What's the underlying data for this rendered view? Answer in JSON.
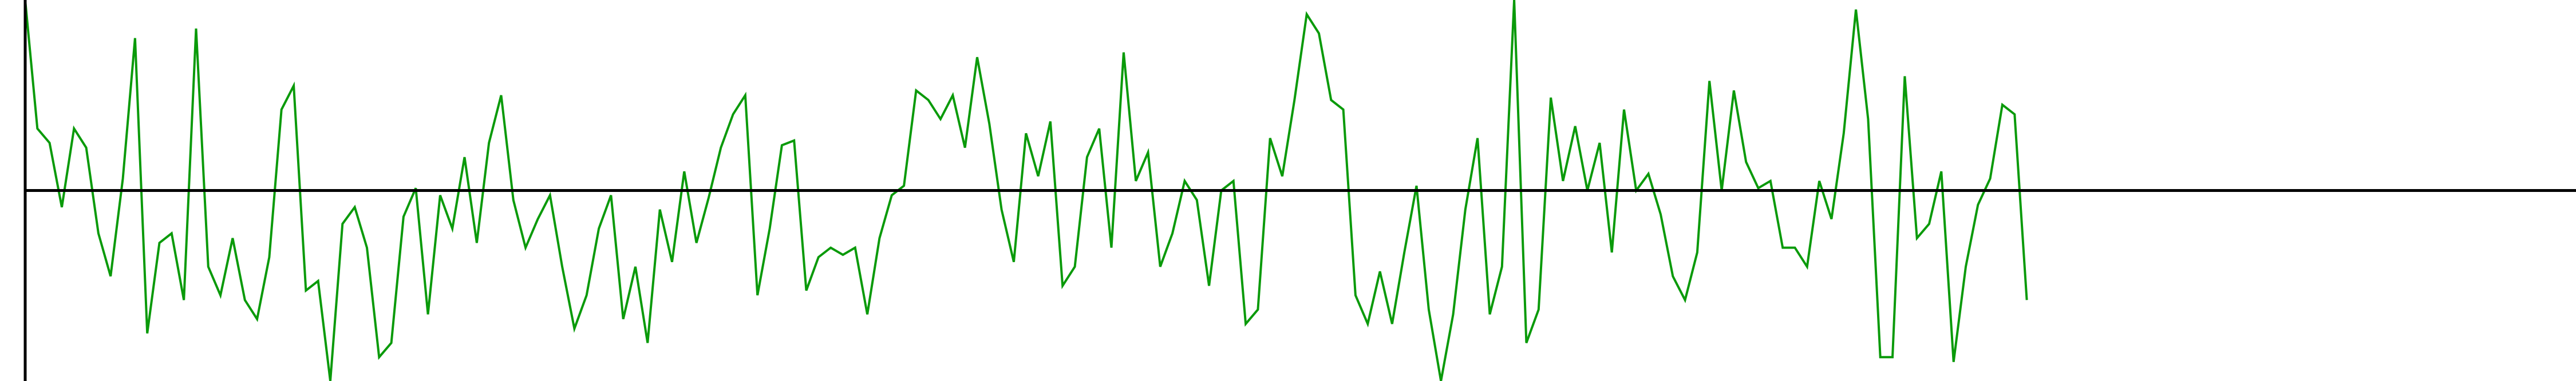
{
  "chart_data": {
    "type": "line",
    "title": "",
    "xlabel": "",
    "ylabel": "",
    "grid": false,
    "legend": "none",
    "xlim": [
      0,
      209
    ],
    "ylim": [
      -4,
      4
    ],
    "baseline": 0,
    "series": [
      {
        "color": "#0a9a0a",
        "values": [
          4.0,
          1.3,
          1.0,
          -0.35,
          1.3,
          0.9,
          -0.9,
          -1.8,
          0.25,
          3.2,
          -3.0,
          -1.1,
          -0.9,
          -2.3,
          3.4,
          -1.6,
          -2.2,
          -1.0,
          -2.3,
          -2.7,
          -1.4,
          1.7,
          2.2,
          -2.1,
          -1.9,
          -4.0,
          -0.7,
          -0.35,
          -1.2,
          -3.5,
          -3.2,
          -0.55,
          0.05,
          -2.6,
          -0.1,
          -0.8,
          0.7,
          -1.1,
          1.0,
          2.0,
          -0.2,
          -1.2,
          -0.6,
          -0.1,
          -1.6,
          -2.9,
          -2.2,
          -0.8,
          -0.1,
          -2.7,
          -1.6,
          -3.2,
          -0.4,
          -1.5,
          0.4,
          -1.1,
          -0.15,
          0.9,
          1.6,
          2.0,
          -2.2,
          -0.8,
          0.95,
          1.05,
          -2.1,
          -1.4,
          -1.2,
          -1.35,
          -1.2,
          -2.6,
          -1.0,
          -0.1,
          0.1,
          2.1,
          1.9,
          1.5,
          2.0,
          0.9,
          2.8,
          1.4,
          -0.4,
          -1.5,
          1.2,
          0.3,
          1.45,
          -2.0,
          -1.6,
          0.7,
          1.3,
          -1.2,
          2.9,
          0.2,
          0.8,
          -1.6,
          -0.9,
          0.2,
          -0.2,
          -2.0,
          0.0,
          0.2,
          -2.8,
          -2.5,
          1.1,
          0.3,
          1.9,
          3.7,
          3.3,
          1.9,
          1.7,
          -2.2,
          -2.8,
          -1.7,
          -2.8,
          -1.3,
          0.1,
          -2.5,
          -4.0,
          -2.6,
          -0.4,
          1.1,
          -2.6,
          -1.6,
          4.0,
          -3.2,
          -2.5,
          1.95,
          0.2,
          1.35,
          0.0,
          1.0,
          -1.3,
          1.7,
          0.0,
          0.35,
          -0.5,
          -1.8,
          -2.3,
          -1.3,
          2.3,
          0.0,
          2.1,
          0.6,
          0.05,
          0.2,
          -1.2,
          -1.2,
          -1.6,
          0.2,
          -0.6,
          1.2,
          3.8,
          1.5,
          -3.5,
          -3.5,
          2.4,
          -1.0,
          -0.7,
          0.4,
          -3.6,
          -1.6,
          -0.3,
          0.25,
          1.8,
          1.6,
          -2.3
        ]
      }
    ]
  }
}
